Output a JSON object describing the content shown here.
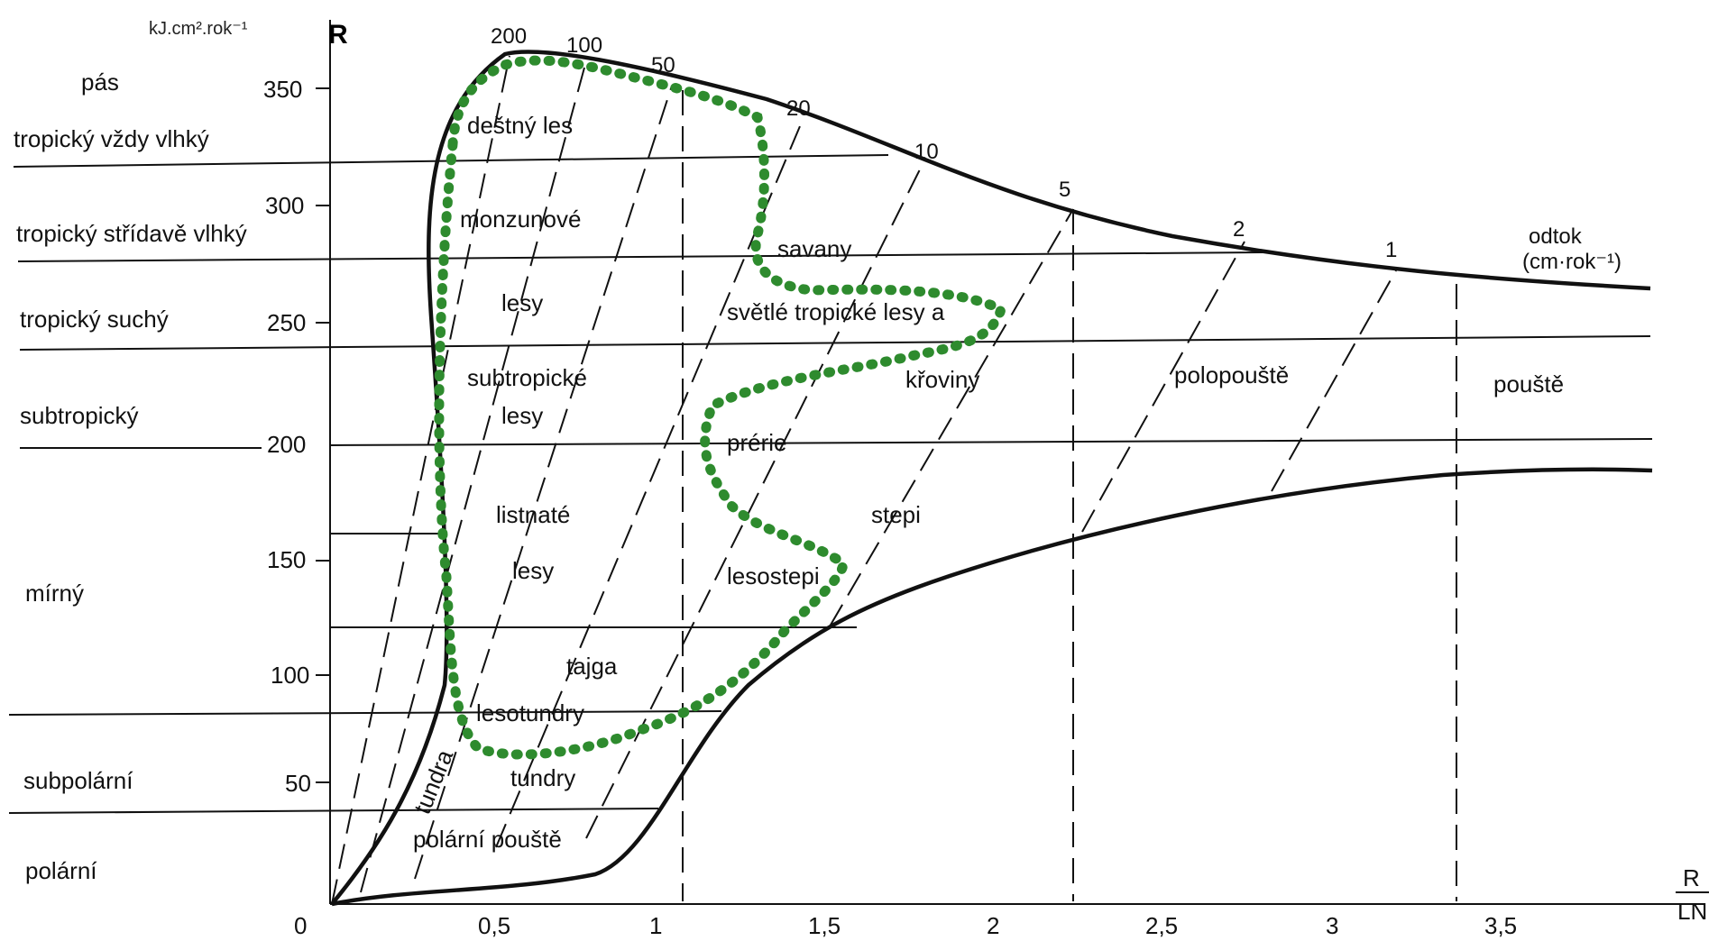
{
  "axis": {
    "y_symbol": "R",
    "y_unit": "kJ.cm².rok⁻¹",
    "x_symbol_top": "R",
    "x_symbol_bottom": "LN",
    "origin": "0",
    "y_ticks": [
      "350",
      "300",
      "250",
      "200",
      "150",
      "100",
      "50"
    ],
    "x_ticks": [
      "0,5",
      "1",
      "1,5",
      "2",
      "2,5",
      "3",
      "3,5"
    ]
  },
  "zones": {
    "header": "pás",
    "tropicky_vzdy_vlhky": "tropický vždy vlhký",
    "tropicky_stridave_vlhky": "tropický střídavě vlhký",
    "tropicky_suchy": "tropický suchý",
    "subtropicky": "subtropický",
    "mirny": "mírný",
    "subpolarni": "subpolární",
    "polarni": "polární"
  },
  "isolines": {
    "v200": "200",
    "v100": "100",
    "v50": "50",
    "v20": "20",
    "v10": "10",
    "v5": "5",
    "v2": "2",
    "v1": "1",
    "title": "odtok",
    "unit": "(cm·rok⁻¹)"
  },
  "vegetation": {
    "destny_les": "deštný les",
    "monzunove": "monzunové",
    "lesy1": "lesy",
    "subtropicke": "subtropické",
    "lesy2": "lesy",
    "listnate": "listnaté",
    "lesy3": "lesy",
    "tajga": "tajga",
    "lesotundry": "lesotundry",
    "tundry": "tundry",
    "tundra": "tundra",
    "polarni_pouste": "polární pouště",
    "savany": "savany",
    "svetle": "světlé tropické lesy a",
    "kroviny": "křoviny",
    "prerie": "prérie",
    "lesostepi": "lesostepi",
    "stepi": "stepi",
    "polopouste": "polopouště",
    "pouste": "pouště"
  },
  "colors": {
    "ink": "#111111",
    "highlight": "#2e8b2e"
  }
}
